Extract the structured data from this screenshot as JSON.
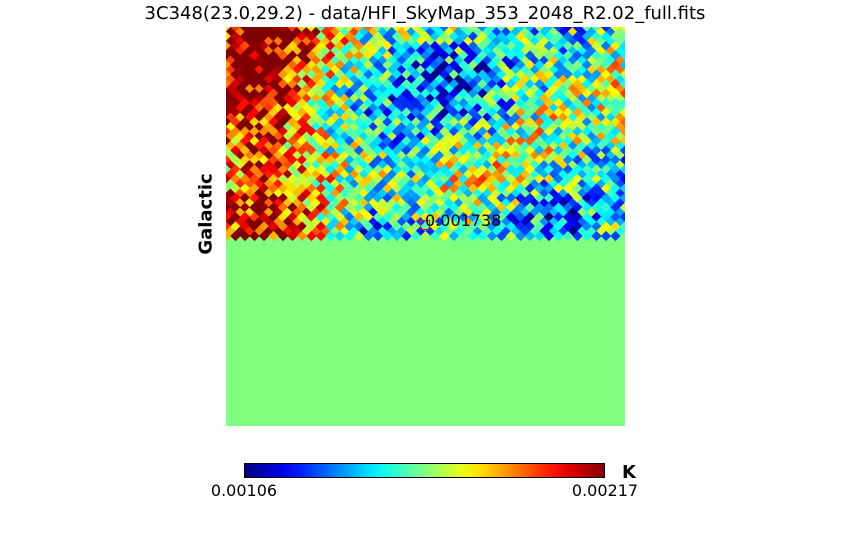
{
  "chart_data": {
    "type": "heatmap",
    "title": "3C348(23.0,29.2) - data/HFI_SkyMap_353_2048_R2.02_full.fits",
    "coord_label": "Galactic",
    "colormap": "jet",
    "colorbar": {
      "min_label": "0.00106",
      "max_label": "0.00217",
      "unit": "K",
      "min": 0.00106,
      "max": 0.00217
    },
    "marker": {
      "label": "0.001738",
      "value": 0.001738,
      "color": "#c81e1e"
    },
    "pixel_grid": "diamond (HEALPix)",
    "value_field_hint": "high values along left and bottom edges, low values in upper-right and central bands"
  }
}
